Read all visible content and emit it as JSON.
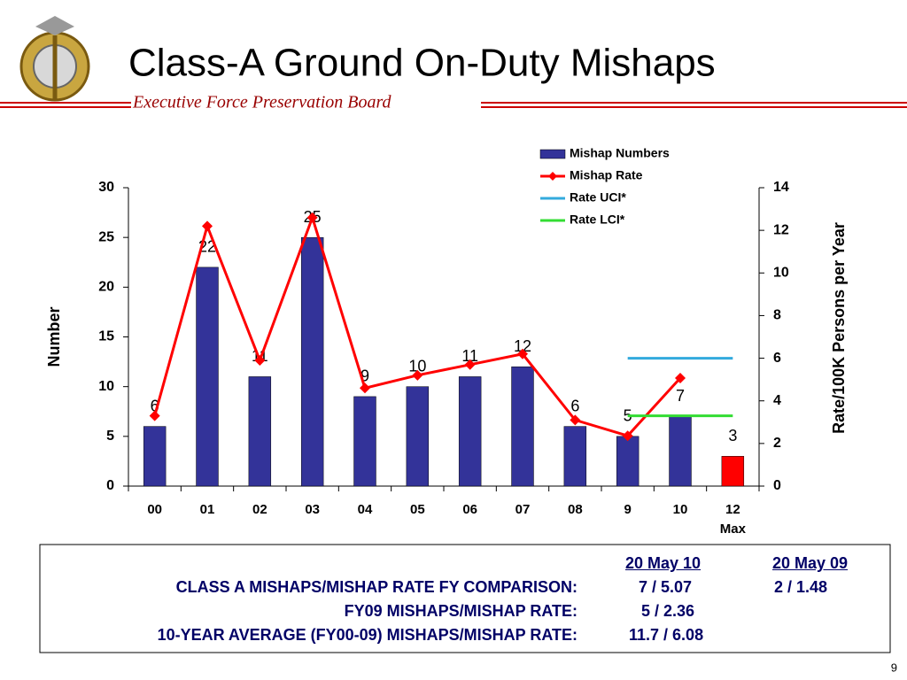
{
  "header": {
    "title": "Class-A Ground On-Duty Mishaps",
    "subtitle": "Executive Force Preservation Board"
  },
  "chart_data": {
    "type": "bar",
    "categories": [
      "00",
      "01",
      "02",
      "03",
      "04",
      "05",
      "06",
      "07",
      "08",
      "9",
      "10",
      "12"
    ],
    "x_note": "Max",
    "ylabel": "Number",
    "y2label": "Rate/100K Persons per Year",
    "ylim": [
      0,
      30
    ],
    "yticks": [
      0,
      5,
      10,
      15,
      20,
      25,
      30
    ],
    "y2lim": [
      0,
      14
    ],
    "y2ticks": [
      0,
      2,
      4,
      6,
      8,
      10,
      12,
      14
    ],
    "legend": "top-right",
    "series": [
      {
        "name": "Mishap Numbers",
        "type": "bar",
        "color": "#333399",
        "colors": [
          "#333399",
          "#333399",
          "#333399",
          "#333399",
          "#333399",
          "#333399",
          "#333399",
          "#333399",
          "#333399",
          "#333399",
          "#333399",
          "#ff0000"
        ],
        "values": [
          6,
          22,
          11,
          25,
          9,
          10,
          11,
          12,
          6,
          5,
          7,
          3
        ]
      },
      {
        "name": "Mishap Rate",
        "type": "line",
        "marker": "diamond",
        "color": "#ff0000",
        "axis": "y2",
        "values": [
          3.3,
          12.2,
          5.9,
          12.6,
          4.6,
          5.2,
          5.7,
          6.2,
          3.1,
          2.36,
          5.07,
          null
        ]
      },
      {
        "name": "Rate UCI*",
        "type": "line",
        "color": "#33aadd",
        "axis": "y2",
        "values": [
          null,
          null,
          null,
          null,
          null,
          null,
          null,
          null,
          null,
          6.0,
          6.0,
          6.0
        ]
      },
      {
        "name": "Rate LCI*",
        "type": "line",
        "color": "#33dd33",
        "axis": "y2",
        "values": [
          null,
          null,
          null,
          null,
          null,
          null,
          null,
          null,
          null,
          3.3,
          3.3,
          3.3
        ]
      }
    ]
  },
  "table": {
    "headers": [
      "20 May 10",
      "20 May 09"
    ],
    "rows": [
      [
        "CLASS A MISHAPS/MISHAP RATE FY COMPARISON:",
        "7 / 5.07",
        "2 / 1.48"
      ],
      [
        "FY09 MISHAPS/MISHAP RATE:",
        "5 / 2.36"
      ],
      [
        "10-YEAR AVERAGE (FY00-09) MISHAPS/MISHAP RATE:",
        "11.7 / 6.08"
      ]
    ]
  },
  "page_number": "9"
}
